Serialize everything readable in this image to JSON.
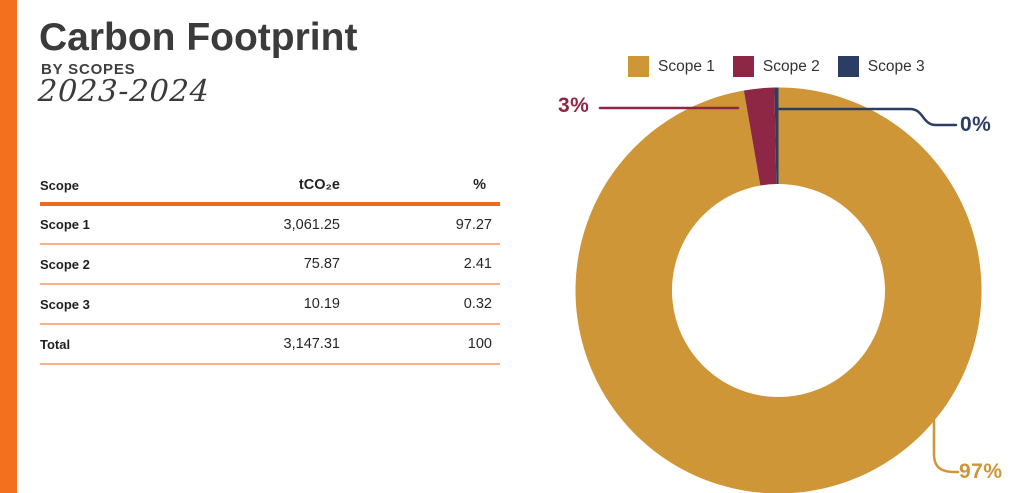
{
  "header": {
    "title": "Carbon Footprint",
    "subtitle": "BY SCOPES",
    "period": "2023-2024"
  },
  "table": {
    "headers": [
      "Scope",
      "tCO₂e",
      "%"
    ],
    "rows": [
      {
        "scope": "Scope 1",
        "tco2e": "3,061.25",
        "pct": "97.27"
      },
      {
        "scope": "Scope 2",
        "tco2e": "75.87",
        "pct": "2.41"
      },
      {
        "scope": "Scope 3",
        "tco2e": "10.19",
        "pct": "0.32"
      },
      {
        "scope": "Total",
        "tco2e": "3,147.31",
        "pct": "100"
      }
    ]
  },
  "chart_data": {
    "type": "pie",
    "donut": true,
    "start_angle_deg": 0,
    "direction": "clockwise",
    "legend_position": "top",
    "legend": [
      "Scope 1",
      "Scope 2",
      "Scope 3"
    ],
    "slices": [
      {
        "name": "Scope 1",
        "value": 97.27,
        "callout_label": "97%",
        "color": "#ce9636"
      },
      {
        "name": "Scope 2",
        "value": 2.41,
        "callout_label": "3%",
        "color": "#8e2646"
      },
      {
        "name": "Scope 3",
        "value": 0.32,
        "callout_label": "0%",
        "color": "#2c3d64"
      }
    ]
  },
  "colors": {
    "accent_bar": "#f3701e",
    "table_rule_thick": "#ed6a1e",
    "table_rule_thin": "#f7b285",
    "title_text": "#3b3b3b",
    "scope1": "#ce9636",
    "scope2": "#8e2646",
    "scope3": "#2c3d64"
  }
}
